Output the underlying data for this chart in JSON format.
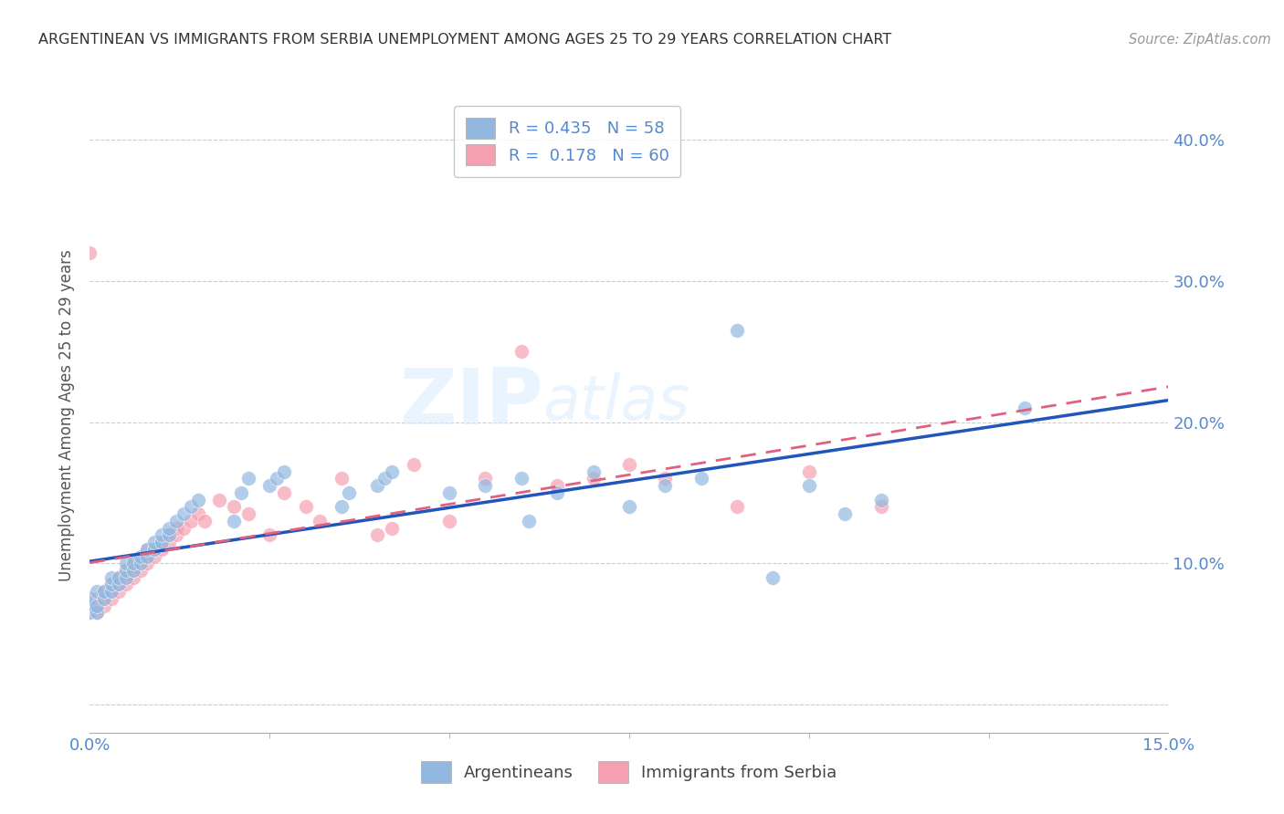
{
  "title": "ARGENTINEAN VS IMMIGRANTS FROM SERBIA UNEMPLOYMENT AMONG AGES 25 TO 29 YEARS CORRELATION CHART",
  "source": "Source: ZipAtlas.com",
  "ylabel": "Unemployment Among Ages 25 to 29 years",
  "xlim": [
    0.0,
    0.15
  ],
  "ylim": [
    -0.02,
    0.43
  ],
  "x_ticks": [
    0.0,
    0.15
  ],
  "x_tick_labels": [
    "0.0%",
    "15.0%"
  ],
  "y_ticks": [
    0.0,
    0.1,
    0.2,
    0.3,
    0.4
  ],
  "y_tick_labels_right": [
    "",
    "10.0%",
    "20.0%",
    "30.0%",
    "40.0%"
  ],
  "R_blue": 0.435,
  "N_blue": 58,
  "R_pink": 0.178,
  "N_pink": 60,
  "blue_color": "#92B8E0",
  "pink_color": "#F5A0B0",
  "blue_line_color": "#2255BB",
  "pink_line_color": "#E06080",
  "tick_color": "#5588CC",
  "watermark_text": "ZIPatlas",
  "legend_labels": [
    "Argentineans",
    "Immigrants from Serbia"
  ],
  "blue_x": [
    0.0,
    0.0,
    0.0,
    0.001,
    0.001,
    0.001,
    0.002,
    0.002,
    0.003,
    0.003,
    0.003,
    0.004,
    0.004,
    0.005,
    0.005,
    0.005,
    0.006,
    0.006,
    0.007,
    0.007,
    0.008,
    0.008,
    0.009,
    0.009,
    0.01,
    0.01,
    0.011,
    0.011,
    0.012,
    0.013,
    0.014,
    0.015,
    0.02,
    0.021,
    0.022,
    0.025,
    0.026,
    0.027,
    0.035,
    0.036,
    0.04,
    0.041,
    0.042,
    0.05,
    0.055,
    0.06,
    0.061,
    0.065,
    0.07,
    0.075,
    0.08,
    0.085,
    0.09,
    0.095,
    0.1,
    0.105,
    0.11,
    0.13
  ],
  "blue_y": [
    0.065,
    0.07,
    0.075,
    0.065,
    0.07,
    0.08,
    0.075,
    0.08,
    0.08,
    0.085,
    0.09,
    0.085,
    0.09,
    0.09,
    0.095,
    0.1,
    0.095,
    0.1,
    0.1,
    0.105,
    0.105,
    0.11,
    0.11,
    0.115,
    0.115,
    0.12,
    0.12,
    0.125,
    0.13,
    0.135,
    0.14,
    0.145,
    0.13,
    0.15,
    0.16,
    0.155,
    0.16,
    0.165,
    0.14,
    0.15,
    0.155,
    0.16,
    0.165,
    0.15,
    0.155,
    0.16,
    0.13,
    0.15,
    0.165,
    0.14,
    0.155,
    0.16,
    0.265,
    0.09,
    0.155,
    0.135,
    0.145,
    0.21
  ],
  "pink_x": [
    0.0,
    0.0,
    0.0,
    0.0,
    0.001,
    0.001,
    0.001,
    0.002,
    0.002,
    0.002,
    0.003,
    0.003,
    0.003,
    0.004,
    0.004,
    0.004,
    0.005,
    0.005,
    0.005,
    0.006,
    0.006,
    0.006,
    0.007,
    0.007,
    0.008,
    0.008,
    0.008,
    0.009,
    0.009,
    0.01,
    0.01,
    0.011,
    0.011,
    0.012,
    0.012,
    0.013,
    0.014,
    0.015,
    0.016,
    0.018,
    0.02,
    0.022,
    0.025,
    0.027,
    0.03,
    0.032,
    0.035,
    0.04,
    0.042,
    0.045,
    0.05,
    0.055,
    0.06,
    0.065,
    0.07,
    0.075,
    0.08,
    0.09,
    0.1,
    0.11
  ],
  "pink_y": [
    0.065,
    0.07,
    0.075,
    0.32,
    0.065,
    0.07,
    0.075,
    0.07,
    0.075,
    0.08,
    0.075,
    0.08,
    0.085,
    0.08,
    0.085,
    0.09,
    0.085,
    0.09,
    0.095,
    0.09,
    0.095,
    0.1,
    0.095,
    0.1,
    0.1,
    0.105,
    0.11,
    0.105,
    0.11,
    0.11,
    0.115,
    0.115,
    0.12,
    0.12,
    0.125,
    0.125,
    0.13,
    0.135,
    0.13,
    0.145,
    0.14,
    0.135,
    0.12,
    0.15,
    0.14,
    0.13,
    0.16,
    0.12,
    0.125,
    0.17,
    0.13,
    0.16,
    0.25,
    0.155,
    0.16,
    0.17,
    0.16,
    0.14,
    0.165,
    0.14
  ]
}
